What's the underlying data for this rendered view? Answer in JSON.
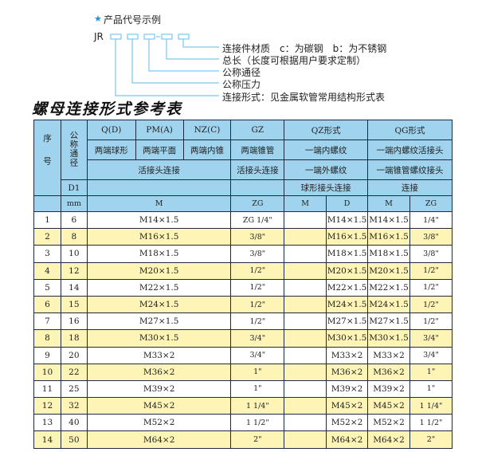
{
  "code_example": {
    "title": "产品代号示例",
    "prefix": "JR",
    "dash": "-",
    "labels": [
      "连接件材质　c：为碳钢　b：为不锈钢",
      "总长（长度可根据用户要求定制）",
      "公称通径",
      "公称压力",
      "连接形式：见金属软管常用结构形式表"
    ],
    "accent_color": "#7cc6ee"
  },
  "table_title": "螺母连接形式参考表",
  "header": {
    "seq": "序号",
    "dn": "公称通径",
    "q": "Q(D)",
    "pm": "PM(A)",
    "nz": "NZ(C)",
    "gz": "GZ",
    "qz": "QZ形式",
    "qg": "QG形式",
    "q2": "两端球形",
    "pm2": "两端平面",
    "nz2": "两端内锥",
    "gz2": "两端锥管",
    "qz2": "一端内螺纹",
    "qg2": "一端内螺纹活接头",
    "union": "活接头连接",
    "gz3": "活接头连接",
    "qz3": "一端外螺纹",
    "qg3": "一端锥管螺纹接头",
    "d1": "D1",
    "qz4": "球形接头连接",
    "qg4": "连接",
    "mm": "mm",
    "m": "M",
    "zg": "ZG",
    "qz_m": "M",
    "qz_d": "D",
    "qg_m": "M",
    "qg_zg": "ZG"
  },
  "colors": {
    "header": "#9fd3ee",
    "alt_row": "#fdf4b6",
    "border": "#1d2a44"
  },
  "rows": [
    {
      "no": "1",
      "dn": "6",
      "m": "M14×1.5",
      "zg": "ZG 1/4\"",
      "qzd": "M14×1.5",
      "qgm": "M14×1.5",
      "qgzg": "1/4\""
    },
    {
      "no": "2",
      "dn": "8",
      "m": "M16×1.5",
      "zg": "3/8\"",
      "qzd": "M16×1.5",
      "qgm": "M16×1.5",
      "qgzg": "3/8\""
    },
    {
      "no": "3",
      "dn": "10",
      "m": "M18×1.5",
      "zg": "3/8\"",
      "qzd": "M18×1.5",
      "qgm": "M18×1.5",
      "qgzg": "3/8\""
    },
    {
      "no": "4",
      "dn": "12",
      "m": "M20×1.5",
      "zg": "1/2\"",
      "qzd": "M20×1.5",
      "qgm": "M20×1.5",
      "qgzg": "1/2\""
    },
    {
      "no": "5",
      "dn": "14",
      "m": "M22×1.5",
      "zg": "1/2\"",
      "qzd": "M22×1.5",
      "qgm": "M22×1.5",
      "qgzg": "1/2\""
    },
    {
      "no": "6",
      "dn": "15",
      "m": "M24×1.5",
      "zg": "1/2\"",
      "qzd": "M24×1.5",
      "qgm": "M24×1.5",
      "qgzg": "1/2\""
    },
    {
      "no": "7",
      "dn": "16",
      "m": "M27×1.5",
      "zg": "1/2\"",
      "qzd": "M27×1.5",
      "qgm": "M27×1.5",
      "qgzg": "1/2\""
    },
    {
      "no": "8",
      "dn": "18",
      "m": "M30×1.5",
      "zg": "3/4\"",
      "qzd": "M30×1.5",
      "qgm": "M30×1.5",
      "qgzg": "3/4\""
    },
    {
      "no": "9",
      "dn": "20",
      "m": "M33×2",
      "zg": "3/4\"",
      "qzd": "M33×2",
      "qgm": "M33×2",
      "qgzg": "3/4\""
    },
    {
      "no": "10",
      "dn": "22",
      "m": "M36×2",
      "zg": "1\"",
      "qzd": "M36×2",
      "qgm": "M36×2",
      "qgzg": "1\""
    },
    {
      "no": "11",
      "dn": "25",
      "m": "M39×2",
      "zg": "1\"",
      "qzd": "M39×2",
      "qgm": "M39×2",
      "qgzg": "1\""
    },
    {
      "no": "12",
      "dn": "32",
      "m": "M45×2",
      "zg": "1 1/4\"",
      "qzd": "M45×2",
      "qgm": "M45×2",
      "qgzg": "1 1/4\""
    },
    {
      "no": "13",
      "dn": "40",
      "m": "M52×2",
      "zg": "1 1/2\"",
      "qzd": "M52×2",
      "qgm": "M52×2",
      "qgzg": "1 1/2\""
    },
    {
      "no": "14",
      "dn": "50",
      "m": "M64×2",
      "zg": "2\"",
      "qzd": "M64×2",
      "qgm": "M64×2",
      "qgzg": "2\""
    }
  ]
}
